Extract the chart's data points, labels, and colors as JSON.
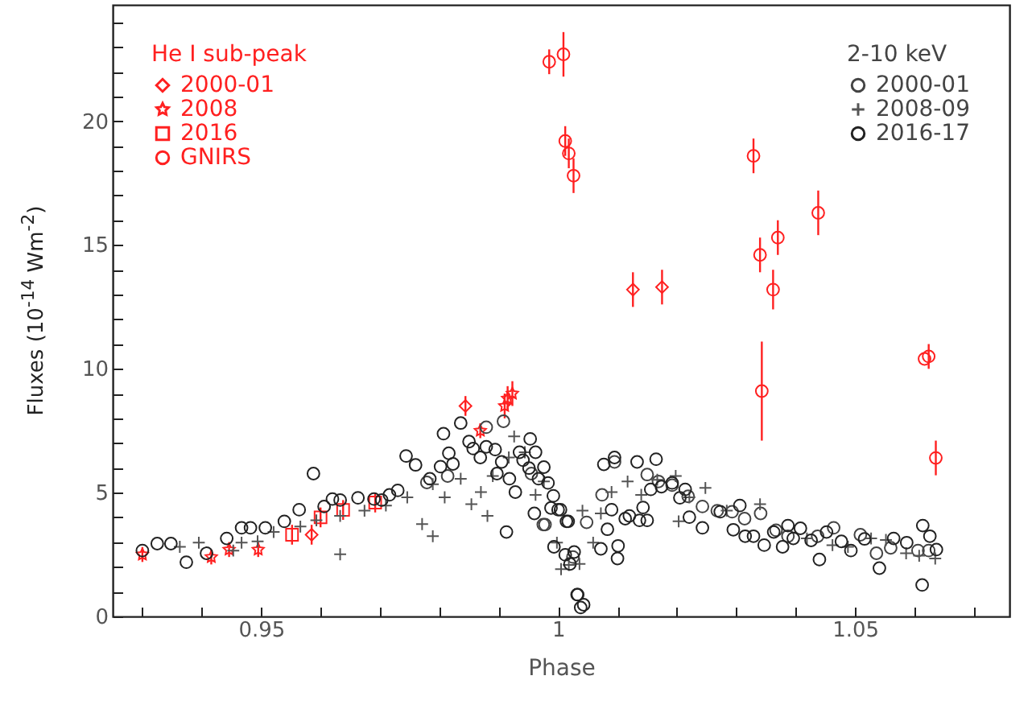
{
  "chart_data": {
    "type": "scatter",
    "xlabel": "Phase",
    "ylabel": "Fluxes (10$^{-14}$ Wm$^{-2}$)",
    "xlim": [
      0.925,
      1.076
    ],
    "ylim": [
      0,
      24.7
    ],
    "xticks": [
      {
        "value": 0.93,
        "label": null
      },
      {
        "value": 0.94,
        "label": null
      },
      0.95,
      {
        "value": 0.96,
        "label": null
      },
      {
        "value": 0.97,
        "label": null
      },
      {
        "value": 0.98,
        "label": null
      },
      {
        "value": 0.99,
        "label": null
      },
      1,
      {
        "value": 1.01,
        "label": null
      },
      {
        "value": 1.02,
        "label": null
      },
      {
        "value": 1.03,
        "label": null
      },
      {
        "value": 1.04,
        "label": null
      },
      1.05,
      {
        "value": 1.06,
        "label": null
      },
      {
        "value": 1.07,
        "label": null
      }
    ],
    "yticks": [
      0,
      {
        "value": 1,
        "label": null
      },
      {
        "value": 2,
        "label": null
      },
      {
        "value": 3,
        "label": null
      },
      {
        "value": 4,
        "label": null
      },
      5,
      {
        "value": 6,
        "label": null
      },
      {
        "value": 7,
        "label": null
      },
      {
        "value": 8,
        "label": null
      },
      {
        "value": 9,
        "label": null
      },
      10,
      {
        "value": 11,
        "label": null
      },
      {
        "value": 12,
        "label": null
      },
      {
        "value": 13,
        "label": null
      },
      {
        "value": 14,
        "label": null
      },
      15,
      {
        "value": 16,
        "label": null
      },
      {
        "value": 17,
        "label": null
      },
      {
        "value": 18,
        "label": null
      },
      {
        "value": 19,
        "label": null
      },
      20,
      {
        "value": 21,
        "label": null
      },
      {
        "value": 22,
        "label": null
      },
      {
        "value": 23,
        "label": null
      },
      {
        "value": 24,
        "label": null
      }
    ],
    "grid": false,
    "legend": [
      "top left",
      "top right"
    ],
    "legend_title": [
      "He I sub-peak",
      "2-10 keV"
    ],
    "series": [
      {
        "name": "2000-01",
        "color": "#ff2020",
        "marker": "diamond",
        "x": [
          0.9585,
          0.9844,
          1.0126,
          1.0175
        ],
        "values": [
          3.3,
          8.5,
          13.2,
          13.3
        ],
        "errors": [
          0.4,
          0.4,
          0.7,
          0.7
        ]
      },
      {
        "name": "2008",
        "color": "#ff2020",
        "marker": "star",
        "x": [
          0.93,
          0.9416,
          0.9446,
          0.9495,
          0.9869,
          0.991,
          0.9915,
          0.9923
        ],
        "values": [
          2.5,
          2.4,
          2.7,
          2.7,
          7.5,
          8.5,
          8.8,
          9.0
        ],
        "errors": [
          0.3,
          0.3,
          0.3,
          0.3,
          0.3,
          0.5,
          0.5,
          0.5
        ]
      },
      {
        "name": "2016",
        "color": "#ff2020",
        "marker": "square",
        "x": [
          0.9552,
          0.96,
          0.9638,
          0.9692
        ],
        "values": [
          3.3,
          4.0,
          4.3,
          4.6
        ],
        "errors": [
          0.4,
          0.4,
          0.4,
          0.4
        ]
      },
      {
        "name": "GNIRS",
        "color": "#ff2020",
        "marker": "circle",
        "x": [
          0.9985,
          1.0009,
          1.0012,
          1.0018,
          1.0026,
          1.0329,
          1.034,
          1.0343,
          1.0362,
          1.037,
          1.0438,
          1.0617,
          1.0624,
          1.0636
        ],
        "values": [
          22.4,
          22.7,
          19.2,
          18.7,
          17.8,
          18.6,
          14.6,
          9.1,
          13.2,
          15.3,
          16.3,
          10.4,
          10.5,
          6.4
        ],
        "errors": [
          0.5,
          0.9,
          0.6,
          0.6,
          0.7,
          0.7,
          0.7,
          2.0,
          0.8,
          0.7,
          0.9,
          null,
          0.5,
          0.7
        ]
      },
      {
        "name": "2000-01",
        "color": "#444444",
        "marker": "circle",
        "x": [
          0.9779,
          0.9814,
          0.9879,
          0.9908,
          0.9955,
          0.9975,
          0.9978,
          1.0025,
          1.0048,
          1.0074,
          1.0095,
          1.015,
          1.0169,
          1.0192,
          1.0219,
          1.0243,
          1.0268,
          1.0293,
          1.0314,
          1.0341,
          1.0367,
          1.0387,
          1.0437,
          1.0464,
          1.0509,
          1.0536,
          1.056,
          1.0606,
          1.0624
        ],
        "values": [
          5.41,
          5.67,
          7.64,
          7.88,
          5.77,
          3.71,
          3.71,
          2.4,
          3.8,
          4.91,
          6.24,
          5.73,
          5.45,
          5.3,
          4.85,
          4.44,
          4.27,
          4.23,
          3.95,
          4.16,
          3.48,
          3.24,
          3.24,
          3.58,
          3.3,
          2.55,
          2.77,
          2.66,
          2.66
        ]
      },
      {
        "name": "2008-09",
        "color": "#555555",
        "marker": "cross",
        "x": [
          0.9363,
          0.9395,
          0.9453,
          0.9467,
          0.9494,
          0.9521,
          0.9566,
          0.9593,
          0.9633,
          0.9633,
          0.9674,
          0.971,
          0.9746,
          0.9771,
          0.9789,
          0.9789,
          0.9809,
          0.9836,
          0.9854,
          0.987,
          0.9881,
          0.989,
          0.9917,
          0.9926,
          0.9944,
          0.9962,
          0.9976,
          0.9998,
          1.0005,
          1.0018,
          1.0036,
          1.0041,
          1.0059,
          1.0072,
          1.009,
          1.0117,
          1.014,
          1.0167,
          1.0198,
          1.0203,
          1.0221,
          1.0248,
          1.0284,
          1.034,
          1.0419,
          1.0462,
          1.0488,
          1.0527,
          1.0552,
          1.0586,
          1.0608,
          1.0635
        ],
        "values": [
          2.81,
          2.98,
          2.66,
          2.98,
          3.03,
          3.41,
          3.63,
          3.88,
          2.51,
          4.06,
          4.27,
          4.48,
          4.81,
          3.73,
          3.24,
          5.34,
          4.81,
          5.56,
          4.53,
          5.02,
          4.06,
          5.67,
          6.42,
          7.27,
          6.63,
          4.91,
          5.45,
          2.98,
          1.91,
          2.08,
          2.12,
          4.27,
          2.98,
          4.16,
          5.02,
          5.45,
          4.91,
          5.52,
          5.67,
          3.84,
          4.81,
          5.19,
          4.27,
          4.53,
          3.15,
          2.88,
          2.81,
          3.15,
          3.09,
          2.55,
          2.45,
          2.34
        ]
      },
      {
        "name": "2016-17",
        "color": "#222222",
        "marker": "circle",
        "x": [
          0.93,
          0.9325,
          0.9348,
          0.9374,
          0.9408,
          0.9442,
          0.9467,
          0.9482,
          0.9507,
          0.9539,
          0.9564,
          0.9588,
          0.9606,
          0.962,
          0.9633,
          0.9663,
          0.969,
          0.9703,
          0.9716,
          0.973,
          0.9744,
          0.976,
          0.9784,
          0.9802,
          0.9807,
          0.9816,
          0.9823,
          0.9836,
          0.985,
          0.9857,
          0.9869,
          0.9879,
          0.9894,
          0.9897,
          0.9905,
          0.9913,
          0.9918,
          0.9928,
          0.9935,
          0.9941,
          0.9951,
          0.9953,
          0.996,
          0.9962,
          0.9967,
          0.9976,
          0.9983,
          0.9988,
          0.9992,
          0.9993,
          1.0,
          1.0004,
          1.0012,
          1.0014,
          1.0017,
          1.002,
          1.0027,
          1.0032,
          1.0033,
          1.0038,
          1.0043,
          1.0072,
          1.0077,
          1.0083,
          1.009,
          1.0095,
          1.01,
          1.0101,
          1.0113,
          1.012,
          1.0133,
          1.0137,
          1.0143,
          1.015,
          1.0156,
          1.0165,
          1.0174,
          1.0192,
          1.0205,
          1.0214,
          1.0221,
          1.0243,
          1.0273,
          1.0295,
          1.0306,
          1.0315,
          1.0329,
          1.0347,
          1.0363,
          1.0378,
          1.0387,
          1.0396,
          1.0408,
          1.0426,
          1.044,
          1.0452,
          1.0477,
          1.0493,
          1.0516,
          1.0541,
          1.0565,
          1.0587,
          1.0613,
          1.0614,
          1.0626,
          1.0637
        ],
        "values": [
          2.66,
          2.94,
          2.94,
          2.19,
          2.55,
          3.15,
          3.58,
          3.58,
          3.58,
          3.84,
          4.31,
          5.77,
          4.44,
          4.74,
          4.7,
          4.79,
          4.74,
          4.7,
          4.91,
          5.09,
          6.48,
          6.12,
          5.56,
          6.05,
          7.38,
          6.59,
          6.16,
          7.81,
          7.06,
          6.78,
          6.42,
          6.85,
          6.74,
          5.77,
          6.24,
          3.41,
          5.56,
          5.02,
          6.63,
          6.31,
          5.99,
          7.17,
          4.16,
          6.63,
          5.56,
          6.03,
          5.39,
          4.38,
          4.87,
          2.81,
          4.31,
          4.31,
          2.49,
          3.84,
          3.84,
          2.12,
          2.6,
          0.88,
          0.88,
          0.36,
          0.47,
          2.73,
          6.14,
          3.52,
          4.31,
          6.42,
          2.34,
          2.85,
          3.95,
          4.06,
          6.24,
          3.88,
          4.4,
          3.88,
          5.13,
          6.35,
          5.24,
          5.39,
          4.79,
          5.13,
          4.01,
          3.58,
          4.23,
          3.5,
          4.48,
          3.24,
          3.24,
          2.88,
          3.41,
          2.81,
          3.67,
          3.15,
          3.56,
          3.07,
          2.3,
          3.41,
          3.03,
          2.66,
          3.13,
          1.95,
          3.15,
          2.98,
          1.27,
          3.67,
          3.24,
          2.7
        ]
      }
    ]
  }
}
